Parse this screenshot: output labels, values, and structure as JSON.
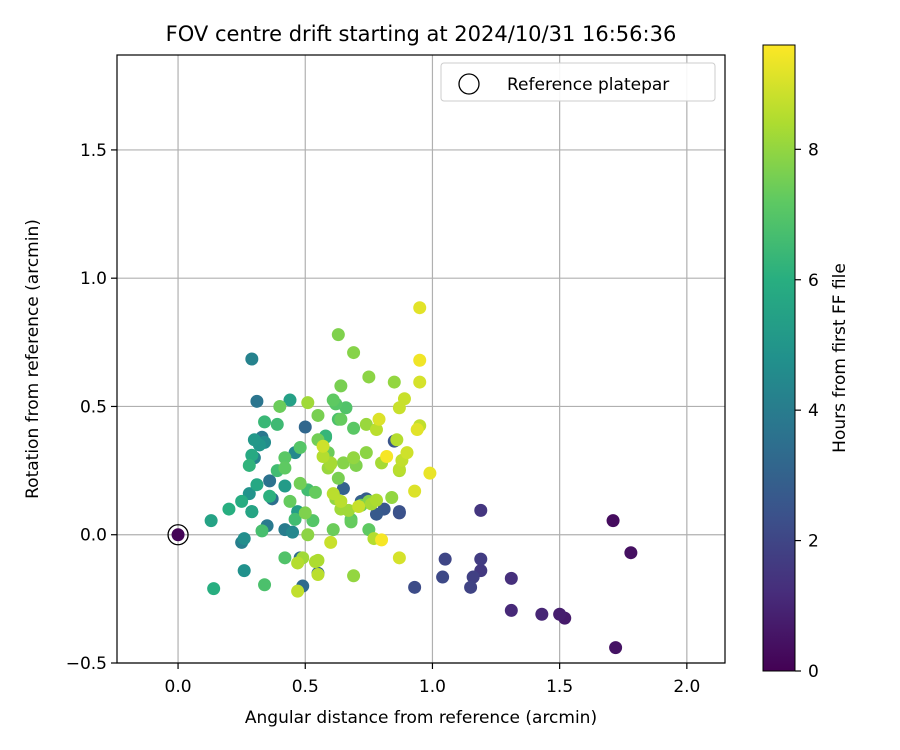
{
  "chart_data": {
    "type": "scatter",
    "title": "FOV centre drift starting at 2024/10/31 16:56:36",
    "xlabel": "Angular distance from reference (arcmin)",
    "ylabel": "Rotation from reference (arcmin)",
    "xlim": [
      -0.24,
      2.15
    ],
    "ylim": [
      -0.5,
      1.87
    ],
    "xticks": [
      0.0,
      0.5,
      1.0,
      1.5,
      2.0
    ],
    "xtick_labels": [
      "0.0",
      "0.5",
      "1.0",
      "1.5",
      "2.0"
    ],
    "yticks": [
      -0.5,
      0.0,
      0.5,
      1.0,
      1.5
    ],
    "ytick_labels": [
      "−0.5",
      "0.0",
      "0.5",
      "1.0",
      "1.5"
    ],
    "grid": true,
    "legend": {
      "placement": "top-right",
      "entries": [
        "Reference platepar"
      ]
    },
    "reference_point": {
      "x": 0.0,
      "y": 0.0,
      "hours": 0.0
    },
    "colorbar": {
      "label": "Hours from first FF file",
      "colormap": "viridis",
      "range": [
        0,
        9.6
      ],
      "ticks": [
        0,
        2,
        4,
        6,
        8
      ],
      "tick_labels": [
        "0",
        "2",
        "4",
        "6",
        "8"
      ]
    },
    "series": [
      {
        "points": [
          [
            0.0,
            0.0,
            0.1
          ],
          [
            1.71,
            0.055,
            0.3
          ],
          [
            1.78,
            -0.07,
            0.4
          ],
          [
            1.72,
            -0.44,
            0.5
          ],
          [
            1.52,
            -0.325,
            0.7
          ],
          [
            1.5,
            -0.31,
            0.8
          ],
          [
            1.43,
            -0.31,
            1.0
          ],
          [
            1.31,
            -0.295,
            1.1
          ],
          [
            1.31,
            -0.17,
            1.3
          ],
          [
            1.19,
            0.095,
            1.5
          ],
          [
            1.19,
            -0.14,
            1.6
          ],
          [
            1.19,
            -0.095,
            1.7
          ],
          [
            1.16,
            -0.165,
            1.8
          ],
          [
            1.15,
            -0.205,
            1.9
          ],
          [
            1.05,
            -0.095,
            2.0
          ],
          [
            1.04,
            -0.165,
            2.1
          ],
          [
            0.93,
            -0.205,
            2.2
          ],
          [
            0.87,
            0.085,
            2.3
          ],
          [
            0.87,
            0.09,
            2.4
          ],
          [
            0.85,
            0.365,
            2.5
          ],
          [
            0.81,
            0.1,
            2.6
          ],
          [
            0.78,
            0.08,
            2.7
          ],
          [
            0.74,
            0.14,
            2.8
          ],
          [
            0.72,
            0.13,
            2.9
          ],
          [
            0.65,
            0.18,
            3.0
          ],
          [
            0.55,
            -0.15,
            3.1
          ],
          [
            0.5,
            0.42,
            3.2
          ],
          [
            0.49,
            -0.2,
            3.3
          ],
          [
            0.48,
            -0.09,
            3.4
          ],
          [
            0.37,
            0.14,
            3.5
          ],
          [
            0.36,
            0.21,
            3.6
          ],
          [
            0.31,
            0.52,
            3.7
          ],
          [
            0.33,
            0.38,
            3.8
          ],
          [
            0.35,
            0.035,
            3.9
          ],
          [
            0.42,
            0.02,
            4.0
          ],
          [
            0.25,
            -0.03,
            4.1
          ],
          [
            0.29,
            0.685,
            4.2
          ],
          [
            0.3,
            0.3,
            4.3
          ],
          [
            0.45,
            0.01,
            4.4
          ],
          [
            0.46,
            0.32,
            4.5
          ],
          [
            0.34,
            0.36,
            4.6
          ],
          [
            0.26,
            -0.015,
            4.7
          ],
          [
            0.26,
            -0.14,
            4.8
          ],
          [
            0.28,
            0.16,
            4.9
          ],
          [
            0.32,
            0.35,
            5.0
          ],
          [
            0.29,
            0.09,
            5.0
          ],
          [
            0.3,
            0.37,
            5.1
          ],
          [
            0.42,
            0.19,
            5.2
          ],
          [
            0.47,
            0.09,
            5.3
          ],
          [
            0.44,
            0.525,
            5.4
          ],
          [
            0.13,
            0.055,
            5.5
          ],
          [
            0.29,
            0.09,
            5.6
          ],
          [
            0.31,
            0.195,
            5.7
          ],
          [
            0.29,
            0.31,
            5.8
          ],
          [
            0.25,
            0.13,
            5.9
          ],
          [
            0.14,
            -0.21,
            6.0
          ],
          [
            0.2,
            0.1,
            6.0
          ],
          [
            0.36,
            0.15,
            6.1
          ],
          [
            0.28,
            0.27,
            6.2
          ],
          [
            0.58,
            0.385,
            6.3
          ],
          [
            0.34,
            0.44,
            6.4
          ],
          [
            0.39,
            0.43,
            6.5
          ],
          [
            0.39,
            0.25,
            6.6
          ],
          [
            0.46,
            0.06,
            6.6
          ],
          [
            0.33,
            0.015,
            6.7
          ],
          [
            0.34,
            -0.195,
            6.8
          ],
          [
            0.42,
            -0.09,
            6.9
          ],
          [
            0.48,
            0.34,
            7.0
          ],
          [
            0.42,
            0.3,
            7.1
          ],
          [
            0.42,
            0.26,
            7.2
          ],
          [
            0.44,
            0.13,
            7.3
          ],
          [
            0.4,
            0.5,
            7.4
          ],
          [
            0.55,
            0.37,
            7.5
          ],
          [
            0.55,
            0.465,
            7.6
          ],
          [
            0.63,
            0.78,
            7.7
          ],
          [
            0.69,
            0.71,
            7.8
          ],
          [
            0.75,
            0.615,
            7.9
          ],
          [
            0.61,
            0.525,
            7.2
          ],
          [
            0.62,
            0.51,
            7.0
          ],
          [
            0.66,
            0.495,
            6.9
          ],
          [
            0.63,
            0.45,
            6.8
          ],
          [
            0.64,
            0.45,
            7.3
          ],
          [
            0.64,
            0.58,
            7.6
          ],
          [
            0.69,
            0.415,
            7.1
          ],
          [
            0.51,
            0.515,
            8.2
          ],
          [
            0.51,
            0.175,
            6.6
          ],
          [
            0.53,
            0.055,
            7.0
          ],
          [
            0.54,
            0.165,
            7.3
          ],
          [
            0.48,
            0.2,
            7.5
          ],
          [
            0.5,
            0.085,
            7.7
          ],
          [
            0.51,
            0.0,
            7.9
          ],
          [
            0.54,
            -0.105,
            8.4
          ],
          [
            0.55,
            -0.155,
            8.6
          ],
          [
            0.47,
            -0.11,
            8.5
          ],
          [
            0.47,
            -0.22,
            8.7
          ],
          [
            0.49,
            -0.09,
            8.2
          ],
          [
            0.61,
            0.02,
            7.4
          ],
          [
            0.63,
            0.22,
            7.6
          ],
          [
            0.65,
            0.28,
            7.8
          ],
          [
            0.68,
            0.06,
            7.1
          ],
          [
            0.68,
            0.05,
            7.3
          ],
          [
            0.69,
            -0.16,
            8.0
          ],
          [
            0.69,
            0.3,
            8.0
          ],
          [
            0.7,
            0.27,
            7.7
          ],
          [
            0.74,
            0.32,
            7.9
          ],
          [
            0.74,
            0.43,
            8.1
          ],
          [
            0.75,
            0.02,
            7.2
          ],
          [
            0.76,
            0.12,
            8.3
          ],
          [
            0.77,
            -0.015,
            8.5
          ],
          [
            0.78,
            0.135,
            8.4
          ],
          [
            0.78,
            0.41,
            8.6
          ],
          [
            0.8,
            0.28,
            8.3
          ],
          [
            0.84,
            0.145,
            8.0
          ],
          [
            0.85,
            0.595,
            8.0
          ],
          [
            0.86,
            0.37,
            8.5
          ],
          [
            0.87,
            0.255,
            8.6
          ],
          [
            0.87,
            0.495,
            8.8
          ],
          [
            0.87,
            -0.09,
            9.0
          ],
          [
            0.89,
            0.53,
            8.8
          ],
          [
            0.9,
            0.32,
            8.9
          ],
          [
            0.93,
            0.17,
            9.1
          ],
          [
            0.94,
            0.41,
            9.2
          ],
          [
            0.95,
            0.425,
            8.7
          ],
          [
            0.95,
            0.885,
            9.2
          ],
          [
            0.95,
            0.595,
            9.0
          ],
          [
            0.95,
            0.68,
            9.4
          ],
          [
            0.99,
            0.24,
            9.3
          ],
          [
            0.88,
            0.29,
            8.7
          ],
          [
            0.87,
            0.25,
            8.4
          ],
          [
            0.82,
            0.305,
            9.5
          ],
          [
            0.8,
            -0.02,
            9.5
          ],
          [
            0.79,
            0.45,
            9.1
          ],
          [
            0.6,
            0.275,
            8.3
          ],
          [
            0.59,
            0.26,
            8.1
          ],
          [
            0.62,
            0.14,
            8.0
          ],
          [
            0.61,
            0.16,
            8.6
          ],
          [
            0.64,
            0.13,
            8.6
          ],
          [
            0.64,
            0.1,
            8.2
          ],
          [
            0.67,
            0.095,
            8.2
          ],
          [
            0.71,
            0.11,
            8.8
          ],
          [
            0.55,
            -0.1,
            8.4
          ],
          [
            0.6,
            -0.03,
            8.8
          ],
          [
            0.57,
            0.345,
            8.9
          ],
          [
            0.57,
            0.305,
            8.5
          ],
          [
            0.59,
            0.32,
            7.4
          ],
          [
            0.6,
            0.28,
            8.3
          ],
          [
            0.72,
            0.115,
            7.4
          ],
          [
            0.58,
            0.38,
            6.2
          ],
          [
            0.75,
            0.13,
            7.8
          ]
        ]
      }
    ]
  }
}
